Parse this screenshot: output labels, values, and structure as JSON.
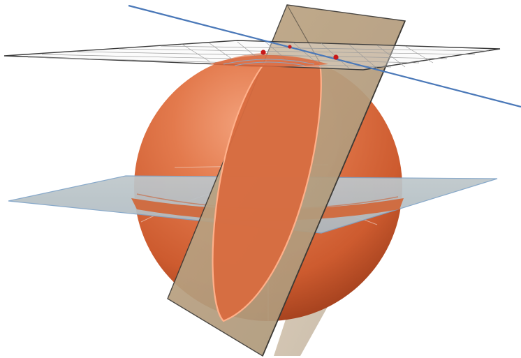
{
  "scene": {
    "background": "#ffffff",
    "colors": {
      "sphere_light": "#ef9a72",
      "sphere_mid": "#dc6a3e",
      "sphere_dark": "#a9431f",
      "sphere_edge": "#7d2f14",
      "circle_stroke": "#ffb08a",
      "horizontal_plane": "#b4c1c8",
      "horizontal_plane_edge": "#7fa3c6",
      "tangent_plane_edge": "#3a3a3a",
      "tangent_grid": "#9a9a9a",
      "vertical_plane": "#b9a78a",
      "vertical_plane_edge": "#3d3a35",
      "line": "#4a78b8",
      "point": "#c81818",
      "guide": "#f2e6de"
    }
  }
}
